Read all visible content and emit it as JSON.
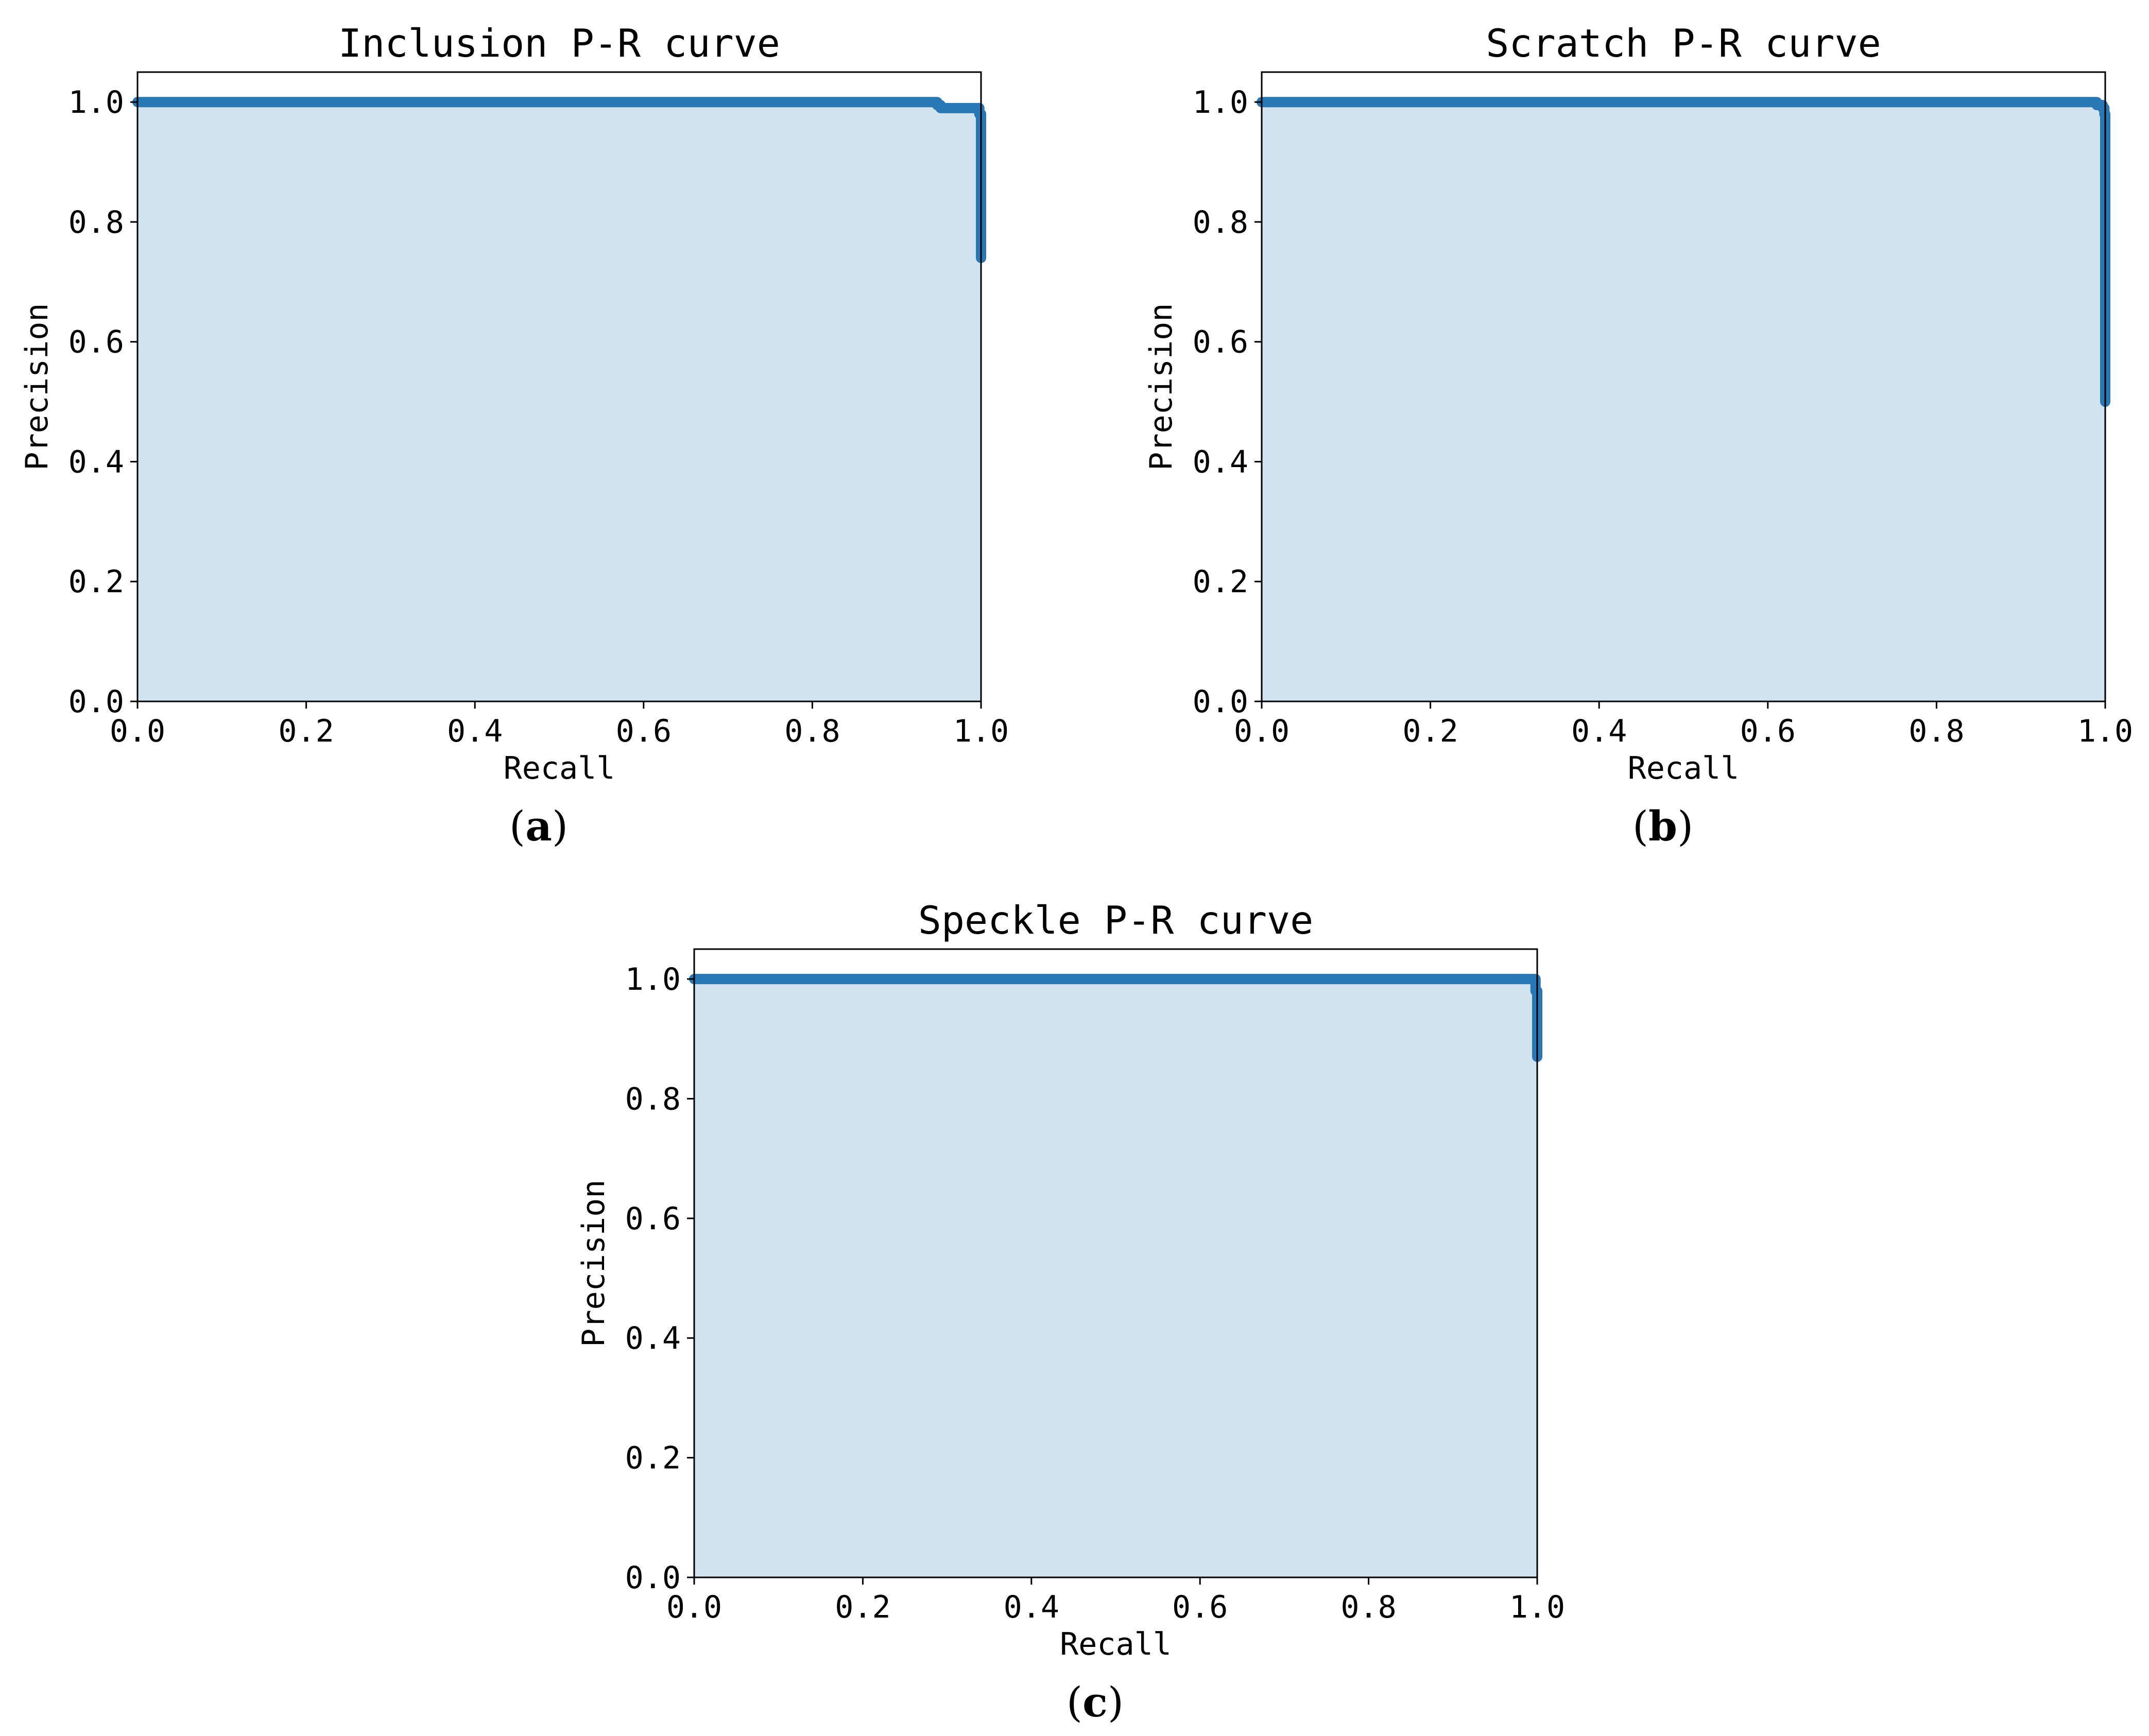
{
  "chart_data": [
    {
      "type": "area",
      "panel_label": "a",
      "title": "Inclusion P-R curve",
      "xlabel": "Recall",
      "ylabel": "Precision",
      "xlim": [
        0.0,
        1.0
      ],
      "ylim": [
        0.0,
        1.05
      ],
      "xticks": [
        "0.0",
        "0.2",
        "0.4",
        "0.6",
        "0.8",
        "1.0"
      ],
      "yticks": [
        "0.0",
        "0.2",
        "0.4",
        "0.6",
        "0.8",
        "1.0"
      ],
      "grid": false,
      "line_color": "#2878b5",
      "fill_color": "#d1e3ef",
      "x": [
        0.0,
        0.945,
        0.948,
        0.952,
        0.995,
        0.997,
        0.998,
        1.0
      ],
      "y": [
        1.0,
        1.0,
        0.995,
        0.99,
        0.99,
        0.99,
        0.98,
        0.74
      ]
    },
    {
      "type": "area",
      "panel_label": "b",
      "title": "Scratch P-R curve",
      "xlabel": "Recall",
      "ylabel": "Precision",
      "xlim": [
        0.0,
        1.0
      ],
      "ylim": [
        0.0,
        1.05
      ],
      "xticks": [
        "0.0",
        "0.2",
        "0.4",
        "0.6",
        "0.8",
        "1.0"
      ],
      "yticks": [
        "0.0",
        "0.2",
        "0.4",
        "0.6",
        "0.8",
        "1.0"
      ],
      "grid": false,
      "line_color": "#2878b5",
      "fill_color": "#d1e3ef",
      "x": [
        0.0,
        0.985,
        0.99,
        0.997,
        0.999,
        1.0
      ],
      "y": [
        1.0,
        1.0,
        0.995,
        0.99,
        0.98,
        0.5
      ]
    },
    {
      "type": "area",
      "panel_label": "c",
      "title": "Speckle P-R curve",
      "xlabel": "Recall",
      "ylabel": "Precision",
      "xlim": [
        0.0,
        1.0
      ],
      "ylim": [
        0.0,
        1.05
      ],
      "xticks": [
        "0.0",
        "0.2",
        "0.4",
        "0.6",
        "0.8",
        "1.0"
      ],
      "yticks": [
        "0.0",
        "0.2",
        "0.4",
        "0.6",
        "0.8",
        "1.0"
      ],
      "grid": false,
      "line_color": "#2878b5",
      "fill_color": "#d1e3ef",
      "x": [
        0.0,
        0.996,
        0.998,
        1.0
      ],
      "y": [
        1.0,
        1.0,
        0.98,
        0.87
      ]
    }
  ]
}
